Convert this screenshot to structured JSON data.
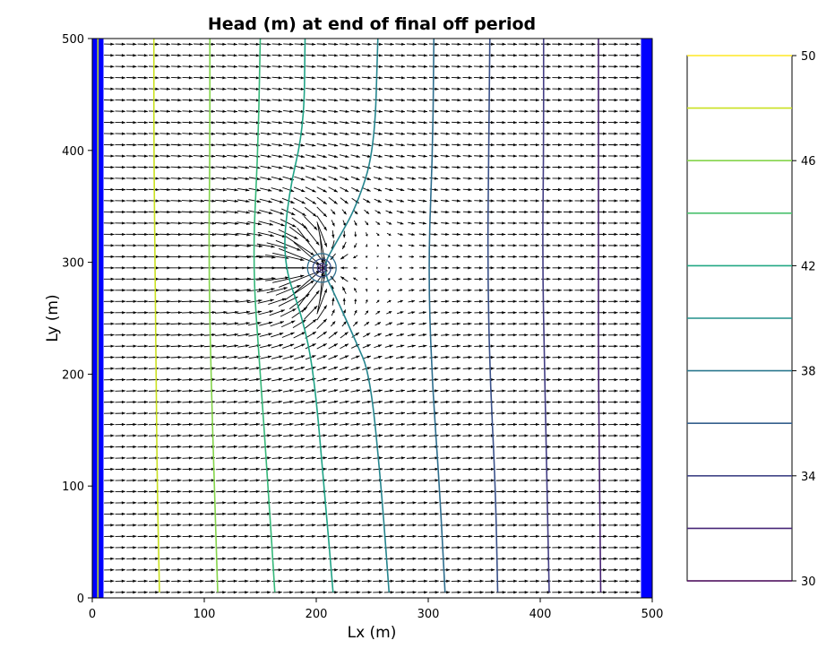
{
  "chart_data": {
    "type": "contour",
    "title": "Head (m) at end of final off period",
    "xlabel": "Lx (m)",
    "ylabel": "Ly (m)",
    "xlim": [
      0,
      500
    ],
    "ylim": [
      0,
      500
    ],
    "xticks": [
      0,
      100,
      200,
      300,
      400,
      500
    ],
    "yticks": [
      0,
      100,
      200,
      300,
      400,
      500
    ],
    "well": {
      "x": 205,
      "y": 295
    },
    "boundary_color": "#0000ff",
    "boundary_strips": [
      {
        "x0": 0,
        "x1": 10
      },
      {
        "x0": 490,
        "x1": 500
      }
    ],
    "contour_levels": [
      50,
      48,
      46,
      44,
      42,
      40,
      38,
      36,
      34,
      32,
      30
    ],
    "contours": [
      {
        "level": 48,
        "color": "#c9e020",
        "points": [
          [
            55,
            500
          ],
          [
            55,
            400
          ],
          [
            56,
            300
          ],
          [
            57,
            200
          ],
          [
            58,
            100
          ],
          [
            60,
            5
          ]
        ]
      },
      {
        "level": 46,
        "color": "#84d44b",
        "points": [
          [
            105,
            500
          ],
          [
            105,
            400
          ],
          [
            104,
            300
          ],
          [
            106,
            200
          ],
          [
            109,
            100
          ],
          [
            112,
            5
          ]
        ]
      },
      {
        "level": 44,
        "color": "#35b779",
        "points": [
          [
            150,
            500
          ],
          [
            148,
            400
          ],
          [
            143,
            300
          ],
          [
            150,
            200
          ],
          [
            157,
            100
          ],
          [
            163,
            5
          ]
        ]
      },
      {
        "level": 42,
        "color": "#20a386",
        "points": [
          [
            190,
            500
          ],
          [
            189,
            420
          ],
          [
            175,
            360
          ],
          [
            170,
            300
          ],
          [
            188,
            250
          ],
          [
            198,
            200
          ],
          [
            207,
            100
          ],
          [
            215,
            5
          ]
        ]
      },
      {
        "level": 40,
        "color": "#25858e",
        "points": [
          [
            255,
            500
          ],
          [
            252,
            400
          ],
          [
            236,
            350
          ],
          [
            218,
            318
          ],
          [
            205,
            295
          ],
          [
            218,
            268
          ],
          [
            235,
            230
          ],
          [
            248,
            200
          ],
          [
            258,
            100
          ],
          [
            265,
            5
          ]
        ]
      },
      {
        "level": 38,
        "color": "#2e6e8e",
        "points": [
          [
            305,
            500
          ],
          [
            304,
            400
          ],
          [
            300,
            300
          ],
          [
            303,
            200
          ],
          [
            310,
            100
          ],
          [
            315,
            5
          ]
        ]
      },
      {
        "level": 36,
        "color": "#3b528b",
        "points": [
          [
            355,
            500
          ],
          [
            354,
            400
          ],
          [
            353,
            300
          ],
          [
            355,
            200
          ],
          [
            360,
            100
          ],
          [
            362,
            5
          ]
        ]
      },
      {
        "level": 34,
        "color": "#433e85",
        "points": [
          [
            403,
            500
          ],
          [
            403,
            400
          ],
          [
            402,
            300
          ],
          [
            404,
            200
          ],
          [
            406,
            100
          ],
          [
            408,
            5
          ]
        ]
      },
      {
        "level": 32,
        "color": "#482374",
        "points": [
          [
            452,
            500
          ],
          [
            452,
            400
          ],
          [
            452,
            300
          ],
          [
            452,
            200
          ],
          [
            453,
            100
          ],
          [
            454,
            5
          ]
        ]
      }
    ],
    "colorbar": {
      "ticks": [
        30,
        34,
        38,
        42,
        46,
        50
      ],
      "levels": [
        {
          "value": 50,
          "color": "#fde725"
        },
        {
          "value": 48,
          "color": "#c9e020"
        },
        {
          "value": 46,
          "color": "#84d44b"
        },
        {
          "value": 44,
          "color": "#4ac16d"
        },
        {
          "value": 42,
          "color": "#22a884"
        },
        {
          "value": 40,
          "color": "#21918c"
        },
        {
          "value": 38,
          "color": "#2a788e"
        },
        {
          "value": 36,
          "color": "#355f8d"
        },
        {
          "value": 34,
          "color": "#414487"
        },
        {
          "value": 32,
          "color": "#482878"
        },
        {
          "value": 30,
          "color": "#440154"
        }
      ]
    },
    "quiver": {
      "spacing": 10,
      "color": "#000000"
    }
  }
}
